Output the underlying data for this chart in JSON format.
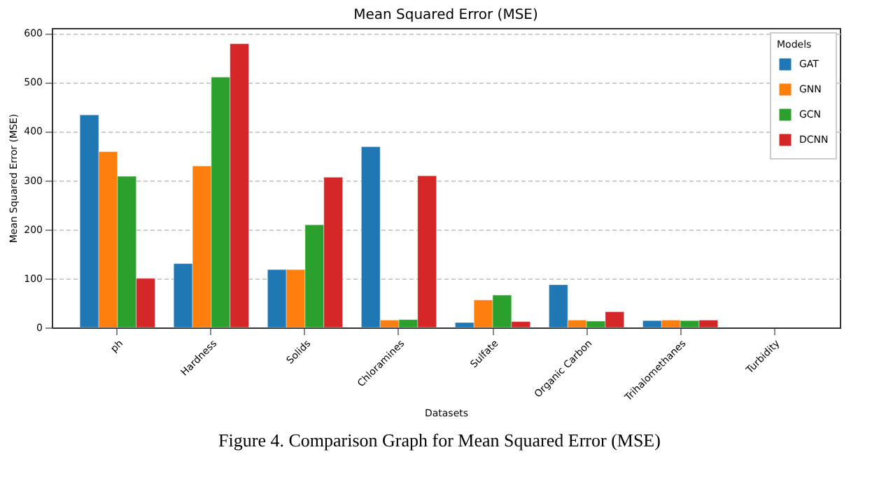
{
  "chart_data": {
    "type": "bar",
    "title": "Mean Squared Error (MSE)",
    "xlabel": "Datasets",
    "ylabel": "Mean Squared Error (MSE)",
    "legend_title": "Models",
    "categories": [
      "ph",
      "Hardness",
      "Solids",
      "Chloramines",
      "Sulfate",
      "Organic Carbon",
      "Trihalomethanes",
      "Turbidity"
    ],
    "series": [
      {
        "name": "GAT",
        "color": "#1f77b4",
        "values": [
          433,
          130,
          118,
          368,
          10,
          87,
          14,
          null
        ]
      },
      {
        "name": "GNN",
        "color": "#ff7f0e",
        "values": [
          358,
          329,
          118,
          15,
          56,
          15,
          15,
          null
        ]
      },
      {
        "name": "GCN",
        "color": "#2ca02c",
        "values": [
          308,
          510,
          209,
          16,
          66,
          13,
          14,
          null
        ]
      },
      {
        "name": "DCNN",
        "color": "#d62728",
        "values": [
          100,
          578,
          306,
          309,
          12,
          32,
          15,
          null
        ]
      }
    ],
    "ylim": [
      0,
      610
    ],
    "yticks": [
      0,
      100,
      200,
      300,
      400,
      500,
      600
    ],
    "grid": "y",
    "legend": "top right",
    "annotations": [
      "Figure 4. Comparison Graph for Mean Squared Error (MSE)"
    ]
  }
}
